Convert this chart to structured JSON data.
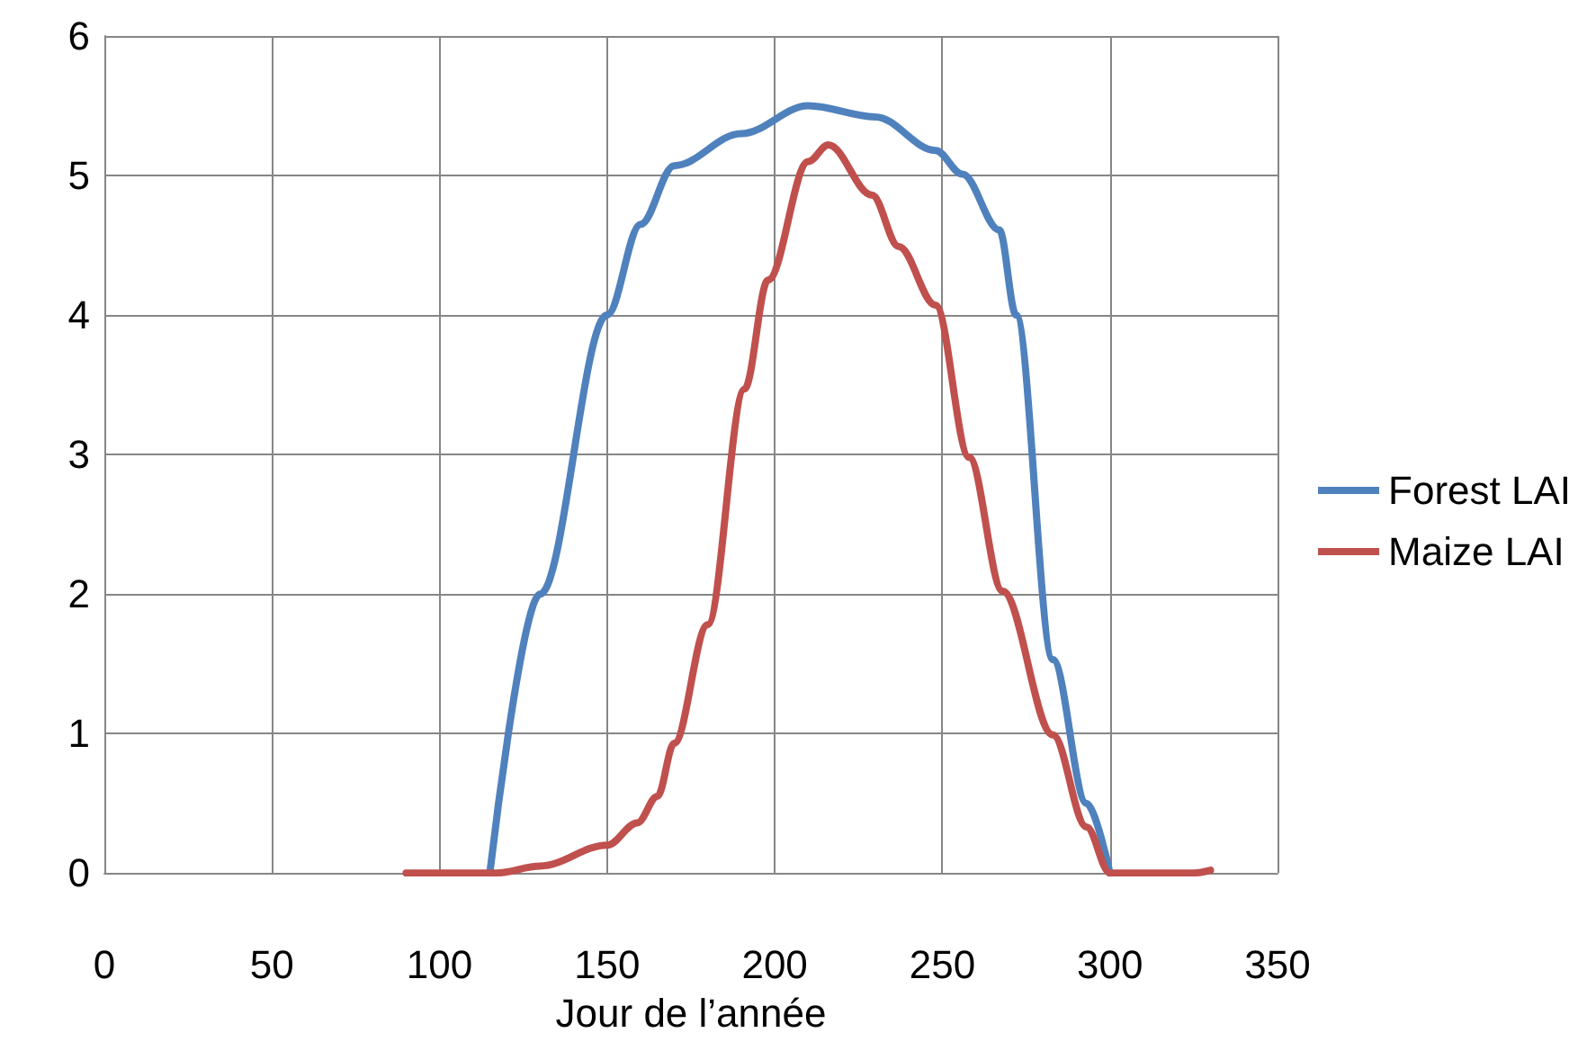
{
  "chart_data": {
    "type": "line",
    "xlabel": "Jour de l’année",
    "series": [
      {
        "name": "Forest LAI",
        "color": "#4f81bd",
        "x": [
          115,
          130,
          150,
          160,
          170,
          190,
          210,
          230,
          248,
          256,
          267,
          272,
          283,
          293,
          300
        ],
        "values": [
          0,
          2.0,
          4.0,
          4.65,
          5.07,
          5.3,
          5.5,
          5.42,
          5.18,
          5.01,
          4.61,
          4.0,
          1.53,
          0.5,
          0
        ]
      },
      {
        "name": "Maize LAI",
        "color": "#c0504d",
        "x": [
          90,
          117,
          130,
          150,
          159,
          165,
          170,
          180,
          191,
          198,
          210,
          216,
          229,
          237,
          248,
          258,
          268,
          283,
          293,
          300,
          325,
          330
        ],
        "values": [
          0,
          0,
          0.05,
          0.2,
          0.36,
          0.55,
          0.93,
          1.78,
          3.47,
          4.25,
          5.1,
          5.22,
          4.86,
          4.49,
          4.07,
          2.98,
          2.02,
          0.99,
          0.33,
          0,
          0,
          0.02
        ]
      }
    ],
    "xlim": [
      0,
      350
    ],
    "xticks": [
      0,
      50,
      100,
      150,
      200,
      250,
      300,
      350
    ],
    "ylim": [
      0,
      6
    ],
    "yticks": [
      0,
      1,
      2,
      3,
      4,
      5,
      6
    ],
    "grid": true,
    "legend": "right",
    "marker": "none",
    "line_style": "solid"
  }
}
